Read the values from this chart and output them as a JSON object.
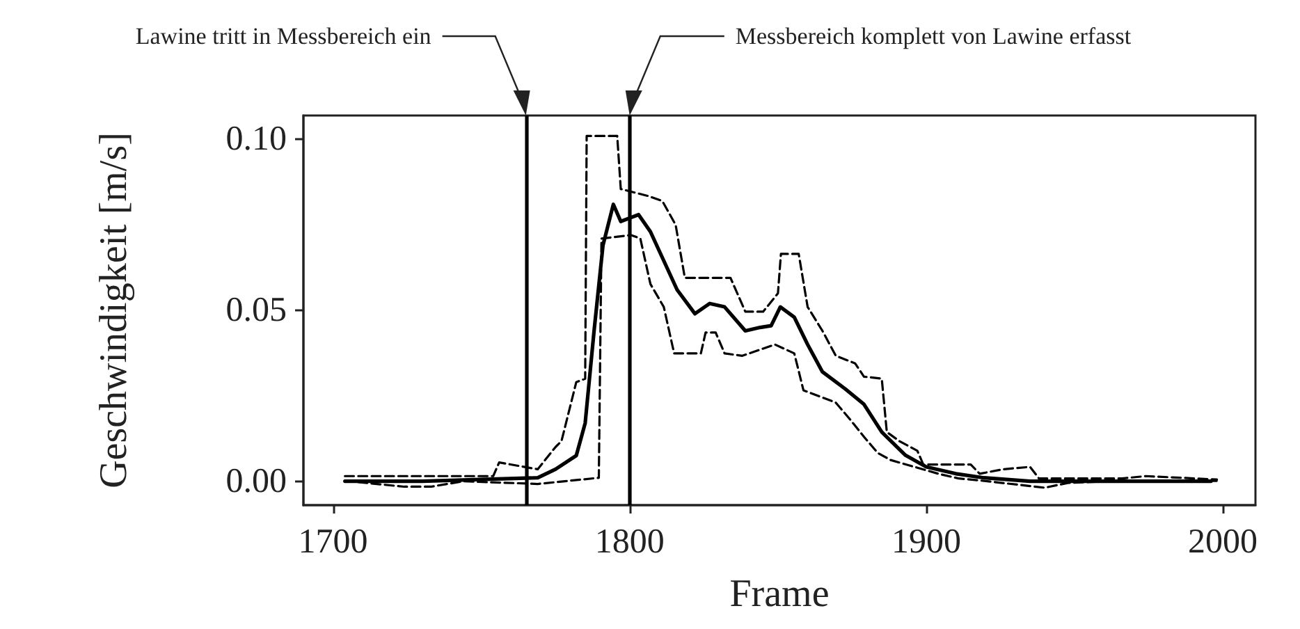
{
  "chart_data": {
    "type": "line",
    "xlabel": "Frame",
    "ylabel": "Geschwindigkeit [m/s]",
    "xlim": [
      1690,
      2011
    ],
    "xticks": [
      1700,
      1800,
      1900,
      2000
    ],
    "ylim": [
      -0.007,
      0.107
    ],
    "yticks": [
      {
        "value": 0,
        "label": "0.00"
      },
      {
        "value": 0.05,
        "label": "0.05"
      },
      {
        "value": 0.1,
        "label": "0.10"
      }
    ],
    "grid": false,
    "marker": "none",
    "series": [
      {
        "color": "#000000",
        "line_style": "dashed",
        "x": [
          1704,
          1730,
          1754,
          1756,
          1769,
          1775,
          1777,
          1782,
          1785,
          1785.5,
          1795.8,
          1797,
          1806,
          1811,
          1815.5,
          1818.6,
          1828,
          1834,
          1839,
          1845,
          1850,
          1851,
          1857,
          1860,
          1865,
          1869.5,
          1876,
          1879,
          1885,
          1886.7,
          1891,
          1897,
          1899,
          1915,
          1918,
          1926,
          1935,
          1938,
          1966,
          1974,
          1998
        ],
        "values": [
          0.0015,
          0.0015,
          0.0015,
          0.0055,
          0.0035,
          0.01,
          0.0117,
          0.029,
          0.03,
          0.101,
          0.101,
          0.0855,
          0.0835,
          0.082,
          0.075,
          0.0595,
          0.0595,
          0.0595,
          0.0496,
          0.0496,
          0.055,
          0.0665,
          0.0665,
          0.051,
          0.044,
          0.0367,
          0.0345,
          0.0306,
          0.03,
          0.0144,
          0.0117,
          0.0089,
          0.0049,
          0.0049,
          0.0022,
          0.0035,
          0.0042,
          0.0008,
          0.0008,
          0.0015,
          0.0005
        ]
      },
      {
        "color": "#000000",
        "line_style": "dashed",
        "x": [
          1704,
          1724,
          1733,
          1744,
          1769,
          1789.6,
          1790.5,
          1800.5,
          1803.6,
          1807,
          1811.5,
          1815,
          1824,
          1825.6,
          1829,
          1832,
          1838,
          1849,
          1855.5,
          1858.6,
          1869.5,
          1874,
          1879,
          1883.6,
          1888,
          1904,
          1911,
          1919.5,
          1940,
          1947.7,
          1966,
          1998
        ],
        "values": [
          0.0001,
          -0.0016,
          -0.0016,
          0,
          -0.0008,
          0.001,
          0.071,
          0.072,
          0.071,
          0.0577,
          0.051,
          0.0374,
          0.0374,
          0.0435,
          0.0435,
          0.0374,
          0.0367,
          0.04,
          0.0374,
          0.0266,
          0.023,
          0.0184,
          0.013,
          0.0083,
          0.0062,
          0.0022,
          0.0008,
          0.0001,
          -0.0019,
          -0.0005,
          0.0001,
          0.0001
        ]
      },
      {
        "color": "#000000",
        "line_style": "solid",
        "x": [
          1704,
          1730,
          1769,
          1775,
          1782,
          1785,
          1788,
          1791,
          1794.5,
          1797,
          1800,
          1803,
          1807,
          1811.5,
          1816,
          1822,
          1827,
          1832,
          1839,
          1844,
          1847.7,
          1850.8,
          1855.5,
          1860,
          1865,
          1872.7,
          1879,
          1885,
          1893,
          1900,
          1910,
          1919.5,
          1935,
          1966,
          1996
        ],
        "values": [
          0,
          0,
          0.001,
          0.0035,
          0.0075,
          0.017,
          0.044,
          0.069,
          0.081,
          0.076,
          0.077,
          0.078,
          0.073,
          0.0645,
          0.056,
          0.049,
          0.052,
          0.051,
          0.044,
          0.045,
          0.0455,
          0.051,
          0.048,
          0.04,
          0.032,
          0.027,
          0.0225,
          0.0144,
          0.0076,
          0.0042,
          0.0022,
          0.001,
          0,
          0,
          0
        ]
      }
    ],
    "annotations": [
      "Lawine tritt in Messbereich ein",
      "Messbereich komplett von Lawine erfasst"
    ],
    "ref_lines": [
      {
        "axis": "x",
        "value": 1765,
        "color": "#000000",
        "line_style": "solid"
      },
      {
        "axis": "x",
        "value": 1800,
        "color": "#000000",
        "line_style": "solid"
      }
    ]
  }
}
